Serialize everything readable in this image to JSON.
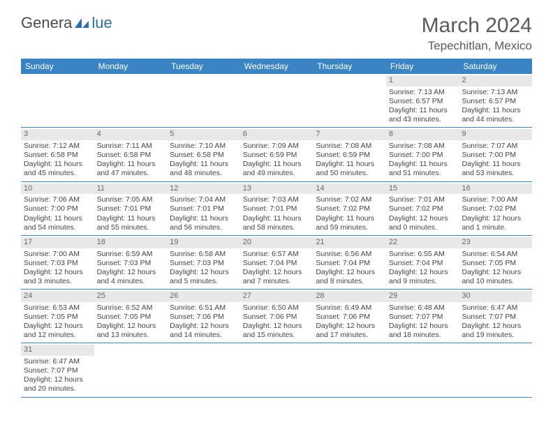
{
  "logo": {
    "text_left": "Genera",
    "text_right": "lue",
    "brand_color": "#2b6fb0"
  },
  "title": "March 2024",
  "location": "Tepechitlan, Mexico",
  "colors": {
    "header_bg": "#3a84c4",
    "header_text": "#ffffff",
    "daynum_bg": "#e8e8e8",
    "text": "#444444",
    "rule": "#3a84c4"
  },
  "weekdays": [
    "Sunday",
    "Monday",
    "Tuesday",
    "Wednesday",
    "Thursday",
    "Friday",
    "Saturday"
  ],
  "weeks": [
    [
      {
        "n": "",
        "sunrise": "",
        "sunset": "",
        "daylight": ""
      },
      {
        "n": "",
        "sunrise": "",
        "sunset": "",
        "daylight": ""
      },
      {
        "n": "",
        "sunrise": "",
        "sunset": "",
        "daylight": ""
      },
      {
        "n": "",
        "sunrise": "",
        "sunset": "",
        "daylight": ""
      },
      {
        "n": "",
        "sunrise": "",
        "sunset": "",
        "daylight": ""
      },
      {
        "n": "1",
        "sunrise": "Sunrise: 7:13 AM",
        "sunset": "Sunset: 6:57 PM",
        "daylight": "Daylight: 11 hours and 43 minutes."
      },
      {
        "n": "2",
        "sunrise": "Sunrise: 7:13 AM",
        "sunset": "Sunset: 6:57 PM",
        "daylight": "Daylight: 11 hours and 44 minutes."
      }
    ],
    [
      {
        "n": "3",
        "sunrise": "Sunrise: 7:12 AM",
        "sunset": "Sunset: 6:58 PM",
        "daylight": "Daylight: 11 hours and 45 minutes."
      },
      {
        "n": "4",
        "sunrise": "Sunrise: 7:11 AM",
        "sunset": "Sunset: 6:58 PM",
        "daylight": "Daylight: 11 hours and 47 minutes."
      },
      {
        "n": "5",
        "sunrise": "Sunrise: 7:10 AM",
        "sunset": "Sunset: 6:58 PM",
        "daylight": "Daylight: 11 hours and 48 minutes."
      },
      {
        "n": "6",
        "sunrise": "Sunrise: 7:09 AM",
        "sunset": "Sunset: 6:59 PM",
        "daylight": "Daylight: 11 hours and 49 minutes."
      },
      {
        "n": "7",
        "sunrise": "Sunrise: 7:08 AM",
        "sunset": "Sunset: 6:59 PM",
        "daylight": "Daylight: 11 hours and 50 minutes."
      },
      {
        "n": "8",
        "sunrise": "Sunrise: 7:08 AM",
        "sunset": "Sunset: 7:00 PM",
        "daylight": "Daylight: 11 hours and 51 minutes."
      },
      {
        "n": "9",
        "sunrise": "Sunrise: 7:07 AM",
        "sunset": "Sunset: 7:00 PM",
        "daylight": "Daylight: 11 hours and 53 minutes."
      }
    ],
    [
      {
        "n": "10",
        "sunrise": "Sunrise: 7:06 AM",
        "sunset": "Sunset: 7:00 PM",
        "daylight": "Daylight: 11 hours and 54 minutes."
      },
      {
        "n": "11",
        "sunrise": "Sunrise: 7:05 AM",
        "sunset": "Sunset: 7:01 PM",
        "daylight": "Daylight: 11 hours and 55 minutes."
      },
      {
        "n": "12",
        "sunrise": "Sunrise: 7:04 AM",
        "sunset": "Sunset: 7:01 PM",
        "daylight": "Daylight: 11 hours and 56 minutes."
      },
      {
        "n": "13",
        "sunrise": "Sunrise: 7:03 AM",
        "sunset": "Sunset: 7:01 PM",
        "daylight": "Daylight: 11 hours and 58 minutes."
      },
      {
        "n": "14",
        "sunrise": "Sunrise: 7:02 AM",
        "sunset": "Sunset: 7:02 PM",
        "daylight": "Daylight: 11 hours and 59 minutes."
      },
      {
        "n": "15",
        "sunrise": "Sunrise: 7:01 AM",
        "sunset": "Sunset: 7:02 PM",
        "daylight": "Daylight: 12 hours and 0 minutes."
      },
      {
        "n": "16",
        "sunrise": "Sunrise: 7:00 AM",
        "sunset": "Sunset: 7:02 PM",
        "daylight": "Daylight: 12 hours and 1 minute."
      }
    ],
    [
      {
        "n": "17",
        "sunrise": "Sunrise: 7:00 AM",
        "sunset": "Sunset: 7:03 PM",
        "daylight": "Daylight: 12 hours and 3 minutes."
      },
      {
        "n": "18",
        "sunrise": "Sunrise: 6:59 AM",
        "sunset": "Sunset: 7:03 PM",
        "daylight": "Daylight: 12 hours and 4 minutes."
      },
      {
        "n": "19",
        "sunrise": "Sunrise: 6:58 AM",
        "sunset": "Sunset: 7:03 PM",
        "daylight": "Daylight: 12 hours and 5 minutes."
      },
      {
        "n": "20",
        "sunrise": "Sunrise: 6:57 AM",
        "sunset": "Sunset: 7:04 PM",
        "daylight": "Daylight: 12 hours and 7 minutes."
      },
      {
        "n": "21",
        "sunrise": "Sunrise: 6:56 AM",
        "sunset": "Sunset: 7:04 PM",
        "daylight": "Daylight: 12 hours and 8 minutes."
      },
      {
        "n": "22",
        "sunrise": "Sunrise: 6:55 AM",
        "sunset": "Sunset: 7:04 PM",
        "daylight": "Daylight: 12 hours and 9 minutes."
      },
      {
        "n": "23",
        "sunrise": "Sunrise: 6:54 AM",
        "sunset": "Sunset: 7:05 PM",
        "daylight": "Daylight: 12 hours and 10 minutes."
      }
    ],
    [
      {
        "n": "24",
        "sunrise": "Sunrise: 6:53 AM",
        "sunset": "Sunset: 7:05 PM",
        "daylight": "Daylight: 12 hours and 12 minutes."
      },
      {
        "n": "25",
        "sunrise": "Sunrise: 6:52 AM",
        "sunset": "Sunset: 7:05 PM",
        "daylight": "Daylight: 12 hours and 13 minutes."
      },
      {
        "n": "26",
        "sunrise": "Sunrise: 6:51 AM",
        "sunset": "Sunset: 7:06 PM",
        "daylight": "Daylight: 12 hours and 14 minutes."
      },
      {
        "n": "27",
        "sunrise": "Sunrise: 6:50 AM",
        "sunset": "Sunset: 7:06 PM",
        "daylight": "Daylight: 12 hours and 15 minutes."
      },
      {
        "n": "28",
        "sunrise": "Sunrise: 6:49 AM",
        "sunset": "Sunset: 7:06 PM",
        "daylight": "Daylight: 12 hours and 17 minutes."
      },
      {
        "n": "29",
        "sunrise": "Sunrise: 6:48 AM",
        "sunset": "Sunset: 7:07 PM",
        "daylight": "Daylight: 12 hours and 18 minutes."
      },
      {
        "n": "30",
        "sunrise": "Sunrise: 6:47 AM",
        "sunset": "Sunset: 7:07 PM",
        "daylight": "Daylight: 12 hours and 19 minutes."
      }
    ],
    [
      {
        "n": "31",
        "sunrise": "Sunrise: 6:47 AM",
        "sunset": "Sunset: 7:07 PM",
        "daylight": "Daylight: 12 hours and 20 minutes."
      },
      {
        "n": "",
        "sunrise": "",
        "sunset": "",
        "daylight": ""
      },
      {
        "n": "",
        "sunrise": "",
        "sunset": "",
        "daylight": ""
      },
      {
        "n": "",
        "sunrise": "",
        "sunset": "",
        "daylight": ""
      },
      {
        "n": "",
        "sunrise": "",
        "sunset": "",
        "daylight": ""
      },
      {
        "n": "",
        "sunrise": "",
        "sunset": "",
        "daylight": ""
      },
      {
        "n": "",
        "sunrise": "",
        "sunset": "",
        "daylight": ""
      }
    ]
  ]
}
